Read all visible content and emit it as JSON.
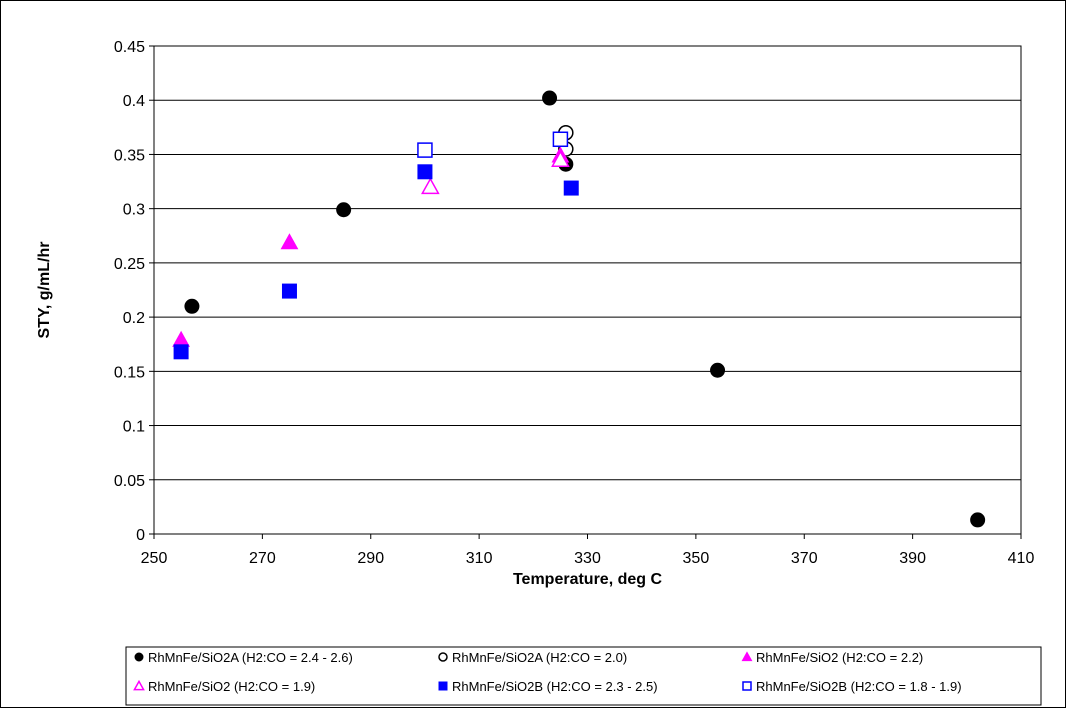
{
  "chart_data": {
    "type": "scatter",
    "title": "",
    "xlabel": "Temperature, deg C",
    "ylabel": "STY, g/mL/hr",
    "xlim": [
      250,
      410
    ],
    "ylim": [
      0,
      0.45
    ],
    "x_ticks": [
      250,
      270,
      290,
      310,
      330,
      350,
      370,
      390,
      410
    ],
    "x_tick_labels": [
      "250",
      "270",
      "290",
      "310",
      "330",
      "350",
      "370",
      "390",
      "410"
    ],
    "y_ticks": [
      0,
      0.05,
      0.1,
      0.15,
      0.2,
      0.25,
      0.3,
      0.35,
      0.4,
      0.45
    ],
    "y_tick_labels": [
      "0",
      "0.05",
      "0.1",
      "0.15",
      "0.2",
      "0.25",
      "0.3",
      "0.35",
      "0.4",
      "0.45"
    ],
    "grid": "horizontal",
    "legend_position": "bottom",
    "series": [
      {
        "name": "RhMnFe/SiO2A (H2:CO = 2.4 - 2.6)",
        "marker": "filled-circle",
        "color": "#000000",
        "points": [
          [
            257,
            0.21
          ],
          [
            285,
            0.299
          ],
          [
            323,
            0.402
          ],
          [
            326,
            0.341
          ],
          [
            354,
            0.151
          ],
          [
            402,
            0.013
          ]
        ]
      },
      {
        "name": "RhMnFe/SiO2A (H2:CO = 2.0)",
        "marker": "open-circle",
        "color": "#000000",
        "points": [
          [
            326,
            0.37
          ],
          [
            326,
            0.355
          ]
        ]
      },
      {
        "name": "RhMnFe/SiO2 (H2:CO = 2.2)",
        "marker": "filled-triangle",
        "color": "#ff00ff",
        "points": [
          [
            255,
            0.179
          ],
          [
            275,
            0.269
          ],
          [
            325,
            0.349
          ]
        ]
      },
      {
        "name": "RhMnFe/SiO2 (H2:CO = 1.9)",
        "marker": "open-triangle",
        "color": "#ff00ff",
        "points": [
          [
            301,
            0.32
          ],
          [
            325,
            0.345
          ]
        ]
      },
      {
        "name": "RhMnFe/SiO2B (H2:CO = 2.3 - 2.5)",
        "marker": "filled-square",
        "color": "#0000ff",
        "points": [
          [
            255,
            0.168
          ],
          [
            275,
            0.224
          ],
          [
            300,
            0.334
          ],
          [
            327,
            0.319
          ]
        ]
      },
      {
        "name": "RhMnFe/SiO2B (H2:CO = 1.8 - 1.9)",
        "marker": "open-square",
        "color": "#0000ff",
        "points": [
          [
            300,
            0.354
          ],
          [
            325,
            0.364
          ]
        ]
      }
    ]
  }
}
